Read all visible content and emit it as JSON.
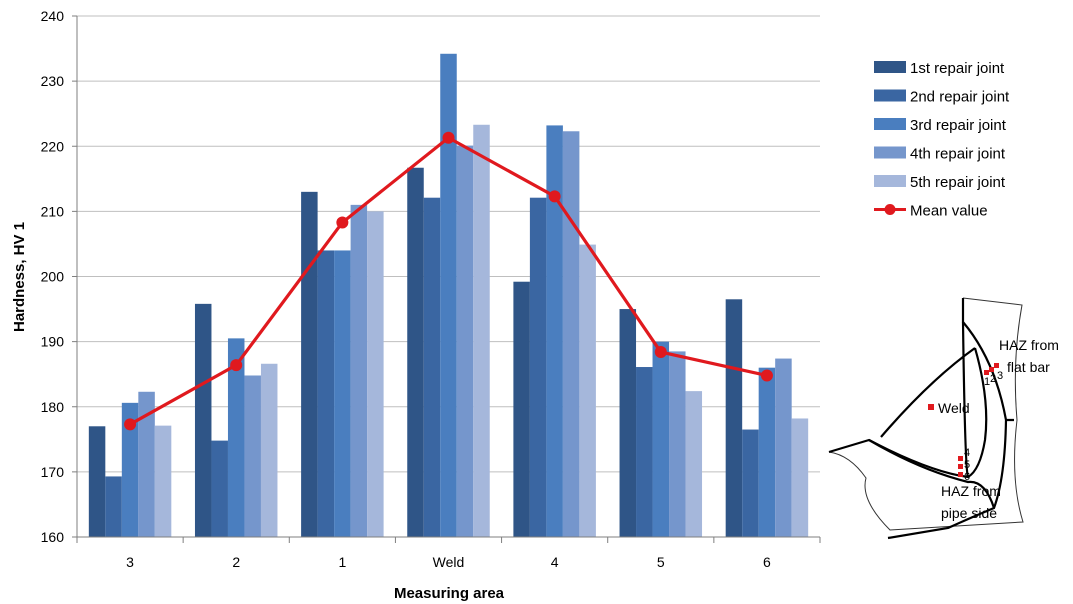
{
  "chart_data": {
    "type": "bar",
    "xlabel": "Measuring area",
    "ylabel": "Hardness, HV 1",
    "ylim": [
      160,
      240
    ],
    "yticks": [
      160,
      170,
      180,
      190,
      200,
      210,
      220,
      230,
      240
    ],
    "grid": true,
    "legend_position": "right",
    "categories": [
      "3",
      "2",
      "1",
      "Weld",
      "4",
      "5",
      "6"
    ],
    "series": [
      {
        "name": "1st repair joint",
        "color": "#2f5587",
        "values": [
          177,
          195.8,
          213,
          216.7,
          199.2,
          195,
          196.5
        ]
      },
      {
        "name": "2nd repair joint",
        "color": "#3a66a2",
        "values": [
          169.3,
          174.8,
          204,
          212.1,
          212.1,
          186.1,
          176.5
        ]
      },
      {
        "name": "3rd repair joint",
        "color": "#4a7ebf",
        "values": [
          180.6,
          190.5,
          204,
          234.2,
          223.2,
          190,
          186
        ]
      },
      {
        "name": "4th repair joint",
        "color": "#7596cc",
        "values": [
          182.3,
          184.8,
          211,
          220.1,
          222.3,
          188.5,
          187.4
        ]
      },
      {
        "name": "5th repair joint",
        "color": "#a5b7db",
        "values": [
          177.1,
          186.6,
          210,
          223.3,
          204.9,
          182.4,
          178.2
        ]
      }
    ],
    "mean": {
      "name": "Mean value",
      "color": "#e0191e",
      "values": [
        177.3,
        186.4,
        208.3,
        221.3,
        212.3,
        188.4,
        184.8
      ]
    }
  },
  "diagram": {
    "weld_label": "Weld",
    "haz_flat_line1": "HAZ from",
    "haz_flat_line2": "flat bar",
    "haz_pipe_line1": "HAZ from",
    "haz_pipe_line2": "pipe side",
    "points_top": [
      "1",
      "2",
      "3"
    ],
    "points_bottom": [
      "4",
      "5",
      "6"
    ],
    "marker_color": "#e0191e"
  }
}
